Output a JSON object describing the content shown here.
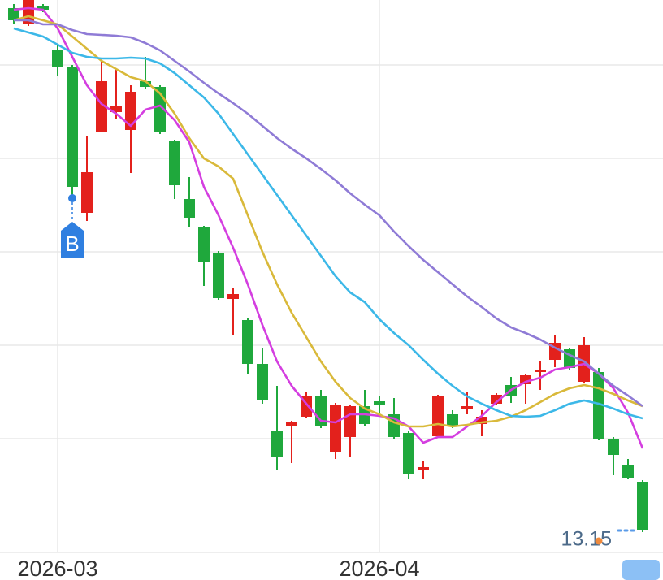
{
  "chart_data": {
    "type": "candlestick",
    "categories": [
      null,
      null,
      null,
      "2026-03",
      null,
      null,
      null,
      null,
      null,
      null,
      null,
      null,
      null,
      null,
      null,
      null,
      null,
      null,
      null,
      null,
      null,
      null,
      null,
      null,
      null,
      "2026-04",
      null,
      null,
      null,
      null,
      null,
      null,
      null,
      null,
      null,
      null,
      null,
      null,
      null,
      null,
      null,
      null,
      null,
      null
    ],
    "open": [
      19.6,
      19.4,
      19.62,
      19.08,
      18.88,
      17.08,
      18.07,
      18.32,
      18.1,
      18.7,
      18.63,
      17.96,
      17.25,
      16.9,
      16.59,
      16.02,
      15.76,
      15.22,
      14.4,
      14.45,
      14.57,
      14.83,
      14.14,
      14.32,
      14.7,
      14.76,
      14.6,
      14.37,
      13.92,
      14.33,
      14.6,
      14.67,
      14.48,
      14.73,
      14.96,
      14.97,
      15.12,
      15.27,
      15.4,
      15.0,
      15.12,
      14.3,
      13.98,
      13.77
    ],
    "high": [
      19.65,
      19.7,
      19.65,
      19.15,
      18.9,
      18.02,
      18.95,
      18.85,
      18.65,
      19.0,
      18.65,
      17.98,
      17.52,
      16.92,
      16.61,
      16.15,
      15.78,
      15.42,
      14.95,
      14.52,
      14.87,
      14.9,
      14.74,
      14.72,
      14.9,
      14.83,
      14.8,
      14.39,
      14.02,
      14.84,
      14.65,
      14.88,
      14.65,
      14.86,
      15.06,
      15.1,
      15.25,
      15.58,
      15.42,
      15.55,
      15.17,
      14.32,
      14.05,
      13.79
    ],
    "low": [
      19.4,
      19.38,
      19.55,
      18.77,
      17.3,
      16.98,
      18.07,
      18.23,
      17.57,
      18.6,
      18.05,
      17.25,
      16.9,
      16.18,
      16.01,
      15.58,
      15.1,
      14.73,
      13.92,
      14.0,
      14.55,
      14.43,
      14.05,
      14.08,
      14.45,
      14.6,
      14.3,
      13.8,
      13.8,
      14.31,
      14.43,
      14.6,
      14.33,
      14.71,
      14.74,
      14.73,
      14.9,
      15.18,
      15.15,
      14.98,
      14.28,
      13.85,
      13.8,
      13.15
    ],
    "close": [
      19.45,
      19.7,
      19.58,
      18.88,
      17.4,
      17.58,
      18.7,
      18.39,
      18.57,
      18.63,
      18.08,
      17.42,
      17.02,
      16.47,
      16.03,
      16.08,
      15.22,
      14.78,
      14.08,
      14.5,
      14.83,
      14.45,
      14.72,
      14.7,
      14.48,
      14.72,
      14.32,
      13.87,
      13.95,
      14.82,
      14.46,
      14.7,
      14.57,
      14.84,
      14.82,
      15.08,
      15.15,
      15.48,
      15.17,
      15.45,
      14.3,
      14.1,
      13.82,
      13.17
    ],
    "up_color": "#e3211c",
    "down_color": "#1fa83c",
    "lines": [
      {
        "color": "#d43ee0",
        "values": [
          19.58,
          19.6,
          19.58,
          19.35,
          19.0,
          18.65,
          18.42,
          18.3,
          18.15,
          18.35,
          18.4,
          18.22,
          17.95,
          17.4,
          17.05,
          16.65,
          16.2,
          15.7,
          15.25,
          14.95,
          14.73,
          14.52,
          14.5,
          14.6,
          14.6,
          14.58,
          14.55,
          14.45,
          14.25,
          14.32,
          14.32,
          14.45,
          14.58,
          14.75,
          14.9,
          15.0,
          15.05,
          15.15,
          15.18,
          15.22,
          15.1,
          14.92,
          14.62,
          14.18
        ]
      },
      {
        "color": "#d9b93a",
        "values": [
          19.45,
          19.5,
          19.45,
          19.4,
          19.25,
          19.1,
          18.95,
          18.85,
          18.75,
          18.7,
          18.55,
          18.3,
          18.0,
          17.75,
          17.65,
          17.5,
          17.05,
          16.6,
          16.2,
          15.85,
          15.55,
          15.25,
          15.0,
          14.8,
          14.67,
          14.6,
          14.5,
          14.45,
          14.45,
          14.48,
          14.45,
          14.47,
          14.5,
          14.52,
          14.57,
          14.65,
          14.75,
          14.85,
          14.92,
          14.96,
          14.92,
          14.85,
          14.77,
          14.7
        ]
      },
      {
        "color": "#3cb8e8",
        "values": [
          19.35,
          19.3,
          19.25,
          19.15,
          19.05,
          19.0,
          18.98,
          18.98,
          18.99,
          18.98,
          18.92,
          18.8,
          18.65,
          18.5,
          18.3,
          18.05,
          17.8,
          17.55,
          17.3,
          17.05,
          16.8,
          16.55,
          16.3,
          16.1,
          15.98,
          15.77,
          15.6,
          15.45,
          15.27,
          15.1,
          14.95,
          14.82,
          14.73,
          14.65,
          14.58,
          14.57,
          14.58,
          14.65,
          14.73,
          14.77,
          14.73,
          14.67,
          14.6,
          14.55
        ]
      },
      {
        "color": "#8f7bd6",
        "values": [
          19.45,
          19.45,
          19.4,
          19.4,
          19.33,
          19.28,
          19.27,
          19.26,
          19.24,
          19.17,
          19.08,
          18.95,
          18.82,
          18.68,
          18.55,
          18.43,
          18.3,
          18.15,
          18.0,
          17.87,
          17.75,
          17.62,
          17.48,
          17.32,
          17.18,
          17.05,
          16.85,
          16.67,
          16.5,
          16.35,
          16.2,
          16.05,
          15.92,
          15.78,
          15.67,
          15.6,
          15.52,
          15.42,
          15.33,
          15.25,
          15.1,
          14.95,
          14.83,
          14.7
        ]
      }
    ],
    "ylim": [
      12.9,
      19.7
    ],
    "signal_label": "B",
    "low_label": 13.15
  }
}
